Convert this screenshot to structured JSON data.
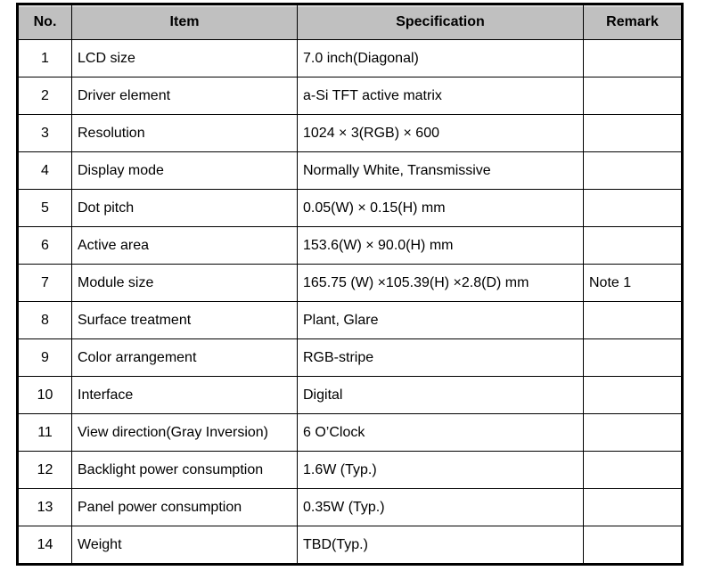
{
  "headers": {
    "no": "No.",
    "item": "Item",
    "spec": "Specification",
    "remark": "Remark"
  },
  "rows": [
    {
      "no": "1",
      "item": "LCD size",
      "spec": "7.0 inch(Diagonal)",
      "remark": ""
    },
    {
      "no": "2",
      "item": "Driver element",
      "spec": "a-Si TFT active matrix",
      "remark": ""
    },
    {
      "no": "3",
      "item": "Resolution",
      "spec": "1024 × 3(RGB) × 600",
      "remark": ""
    },
    {
      "no": "4",
      "item": "Display mode",
      "spec": "Normally White, Transmissive",
      "remark": ""
    },
    {
      "no": "5",
      "item": "Dot pitch",
      "spec": "0.05(W) × 0.15(H) mm",
      "remark": ""
    },
    {
      "no": "6",
      "item": "Active area",
      "spec": "153.6(W) × 90.0(H) mm",
      "remark": ""
    },
    {
      "no": "7",
      "item": "Module size",
      "spec": "165.75 (W) ×105.39(H) ×2.8(D) mm",
      "remark": "Note 1"
    },
    {
      "no": "8",
      "item": "Surface treatment",
      "spec": "Plant, Glare",
      "remark": ""
    },
    {
      "no": "9",
      "item": "Color arrangement",
      "spec": "RGB-stripe",
      "remark": ""
    },
    {
      "no": "10",
      "item": "Interface",
      "spec": "Digital",
      "remark": ""
    },
    {
      "no": "11",
      "item": "View direction(Gray Inversion)",
      "spec": "6 O’Clock",
      "remark": ""
    },
    {
      "no": "12",
      "item": "Backlight power consumption",
      "spec": "1.6W (Typ.)",
      "remark": ""
    },
    {
      "no": "13",
      "item": "Panel power consumption",
      "spec": "0.35W (Typ.)",
      "remark": ""
    },
    {
      "no": "14",
      "item": "Weight",
      "spec": "TBD(Typ.)",
      "remark": ""
    }
  ]
}
